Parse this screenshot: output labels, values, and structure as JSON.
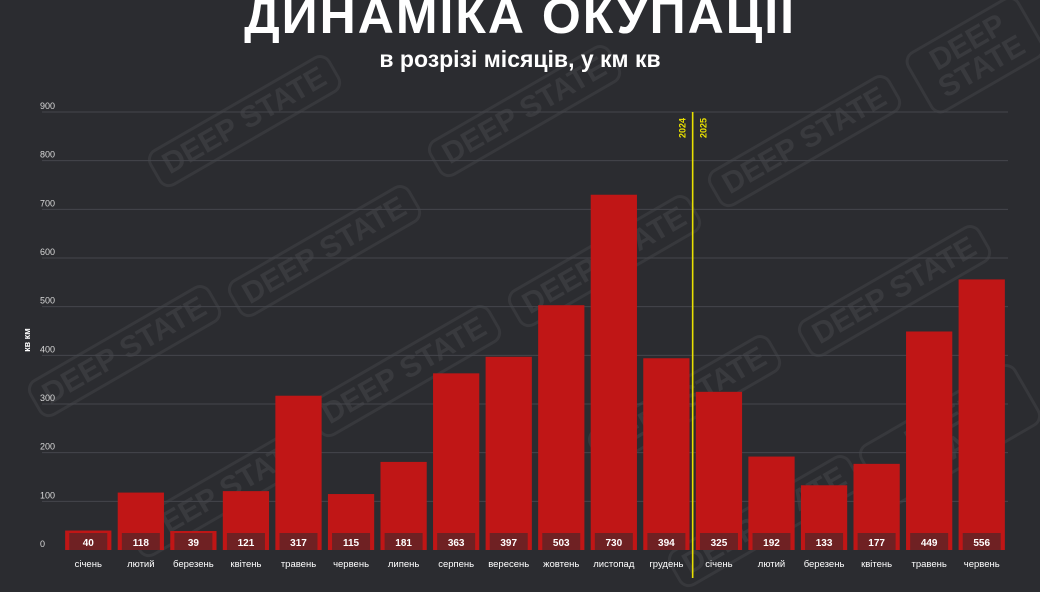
{
  "title": "ДИНАМІКА ОКУПАЦІЇ",
  "subtitle": "в розрізі місяців, у км кв",
  "watermark": "DEEP STATE",
  "chart_data": {
    "type": "bar",
    "ylabel": "кв км",
    "ylim": [
      0,
      900
    ],
    "yticks": [
      0,
      100,
      200,
      300,
      400,
      500,
      600,
      700,
      800,
      900
    ],
    "categories": [
      "січень",
      "лютий",
      "березень",
      "квітень",
      "травень",
      "червень",
      "липень",
      "серпень",
      "вересень",
      "жовтень",
      "листопад",
      "грудень",
      "січень",
      "лютий",
      "березень",
      "квітень",
      "травень",
      "червень"
    ],
    "values": [
      40,
      118,
      39,
      121,
      317,
      115,
      181,
      363,
      397,
      503,
      730,
      394,
      325,
      192,
      133,
      177,
      449,
      556
    ],
    "bar_labels": [
      "40",
      "118",
      "39",
      "121",
      "317",
      "115",
      "181",
      "363",
      "397",
      "503",
      "730",
      "394",
      "325",
      "192",
      "133",
      "177",
      "449",
      "556"
    ],
    "year_divider": {
      "after_index": 11,
      "left_label": "2024",
      "right_label": "2025"
    },
    "grid": true,
    "colors": {
      "bar": "#c01616",
      "divider": "#e8e000",
      "grid": "#45464c",
      "label_bg": "#2b2c30"
    }
  }
}
